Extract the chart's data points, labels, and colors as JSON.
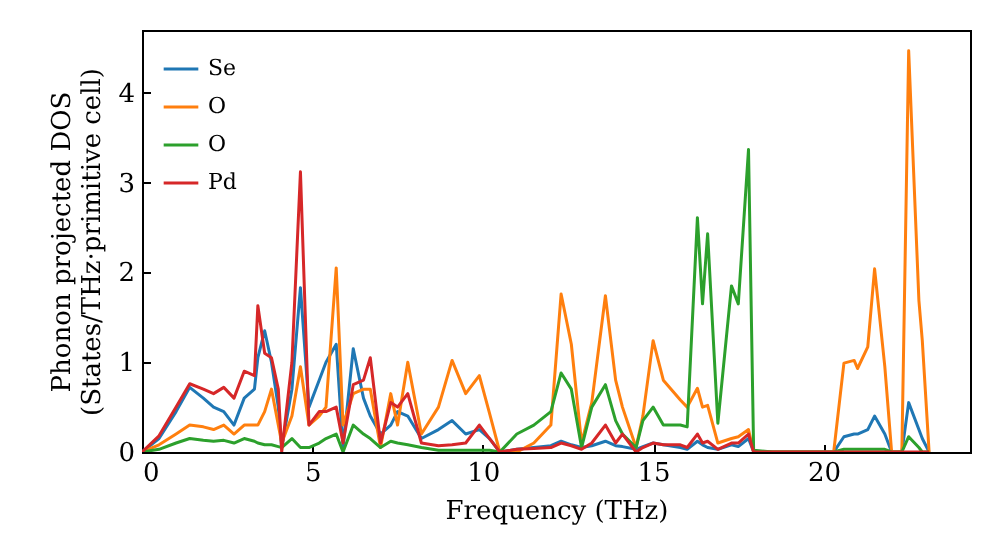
{
  "chart_data": {
    "type": "line",
    "xlabel": "Frequency (THz)",
    "ylabel": "Phonon projected DOS\n(States/THz·primitive cell)",
    "x": [
      0,
      0.5,
      1.0,
      1.4,
      1.8,
      2.1,
      2.4,
      2.7,
      3.0,
      3.3,
      3.4,
      3.6,
      3.8,
      4.0,
      4.1,
      4.4,
      4.65,
      4.9,
      5.2,
      5.4,
      5.7,
      5.9,
      6.2,
      6.5,
      6.7,
      7.0,
      7.3,
      7.5,
      7.8,
      8.2,
      8.7,
      9.1,
      9.5,
      9.9,
      10.2,
      10.5,
      11.0,
      11.5,
      12.0,
      12.3,
      12.6,
      12.9,
      13.2,
      13.6,
      13.9,
      14.1,
      14.5,
      14.7,
      15.0,
      15.3,
      15.8,
      16.0,
      16.3,
      16.45,
      16.6,
      16.9,
      17.3,
      17.5,
      17.8,
      17.95,
      18.5,
      19.5,
      20.3,
      20.6,
      20.9,
      21.0,
      21.3,
      21.5,
      21.8,
      22.0,
      22.3,
      22.5,
      22.8,
      22.9,
      23.1
    ],
    "series": [
      {
        "name": "Se",
        "color": "#1f77b4",
        "values": [
          0,
          0.15,
          0.45,
          0.72,
          0.6,
          0.5,
          0.45,
          0.3,
          0.6,
          0.7,
          1.05,
          1.35,
          1.0,
          0.5,
          0.05,
          0.7,
          1.83,
          0.5,
          0.8,
          1.0,
          1.2,
          0.05,
          1.15,
          0.6,
          0.4,
          0.2,
          0.3,
          0.45,
          0.4,
          0.15,
          0.25,
          0.35,
          0.2,
          0.25,
          0.15,
          0,
          0.03,
          0.05,
          0.07,
          0.12,
          0.08,
          0.05,
          0.07,
          0.12,
          0.07,
          0.06,
          0.03,
          0.06,
          0.1,
          0.08,
          0.05,
          0.03,
          0.12,
          0.08,
          0.05,
          0.03,
          0.08,
          0.06,
          0.15,
          0,
          0,
          0,
          0,
          0.17,
          0.2,
          0.2,
          0.25,
          0.4,
          0.2,
          0,
          0,
          0.55,
          0.25,
          0.15,
          0
        ]
      },
      {
        "name": "O",
        "color": "#ff7f0e",
        "values": [
          0,
          0.08,
          0.2,
          0.3,
          0.28,
          0.25,
          0.3,
          0.2,
          0.3,
          0.3,
          0.3,
          0.45,
          0.7,
          0.3,
          0.1,
          0.4,
          0.95,
          0.3,
          0.4,
          0.5,
          2.05,
          0.3,
          0.65,
          0.7,
          0.7,
          0.05,
          0.65,
          0.3,
          1.0,
          0.2,
          0.5,
          1.02,
          0.65,
          0.85,
          0.43,
          0,
          0,
          0.1,
          0.3,
          1.76,
          1.2,
          0.1,
          0.55,
          1.74,
          0.8,
          0.5,
          0.05,
          0.4,
          1.24,
          0.8,
          0.58,
          0.5,
          0.71,
          0.5,
          0.52,
          0.1,
          0.15,
          0.17,
          0.25,
          0,
          0,
          0,
          0,
          0.99,
          1.02,
          0.93,
          1.17,
          2.04,
          0.95,
          0,
          0,
          4.47,
          1.69,
          1.24,
          0
        ]
      },
      {
        "name": "O",
        "color": "#2ca02c",
        "values": [
          0,
          0.03,
          0.1,
          0.15,
          0.13,
          0.12,
          0.13,
          0.1,
          0.15,
          0.12,
          0.1,
          0.08,
          0.08,
          0.06,
          0.05,
          0.15,
          0.05,
          0.05,
          0.1,
          0.15,
          0.2,
          0,
          0.3,
          0.2,
          0.15,
          0.05,
          0.12,
          0.1,
          0.08,
          0.05,
          0.02,
          0.02,
          0.02,
          0.02,
          0.02,
          0,
          0.2,
          0.3,
          0.45,
          0.88,
          0.7,
          0.05,
          0.5,
          0.75,
          0.35,
          0.2,
          0.05,
          0.35,
          0.5,
          0.3,
          0.3,
          0.28,
          2.61,
          1.65,
          2.43,
          0.32,
          1.85,
          1.65,
          3.37,
          0.02,
          0,
          0,
          0,
          0.03,
          0.03,
          0.03,
          0.03,
          0.03,
          0.03,
          0,
          0,
          0.17,
          0.05,
          0,
          0
        ]
      },
      {
        "name": "Pd",
        "color": "#d62728",
        "values": [
          0,
          0.18,
          0.5,
          0.76,
          0.7,
          0.65,
          0.72,
          0.6,
          0.9,
          0.85,
          1.63,
          1.1,
          1.05,
          0.7,
          0,
          1.0,
          3.12,
          0.3,
          0.45,
          0.45,
          0.5,
          0.1,
          0.75,
          0.8,
          1.05,
          0.1,
          0.55,
          0.5,
          0.65,
          0.1,
          0.07,
          0.08,
          0.1,
          0.3,
          0.15,
          0,
          0.03,
          0.04,
          0.05,
          0.1,
          0.07,
          0.03,
          0.1,
          0.3,
          0.1,
          0.2,
          0,
          0.05,
          0.1,
          0.08,
          0.08,
          0.05,
          0.2,
          0.1,
          0.12,
          0.03,
          0.1,
          0.1,
          0.2,
          0,
          0,
          0,
          0,
          0,
          0,
          0,
          0,
          0,
          0,
          0,
          0,
          0,
          0,
          0,
          0
        ]
      }
    ],
    "xlim": [
      0,
      24.3
    ],
    "xticks": [
      0,
      5,
      10,
      15,
      20
    ],
    "ylim": [
      0,
      4.7
    ],
    "yticks": [
      0,
      1,
      2,
      3,
      4
    ],
    "legend": "top left",
    "grid": false,
    "marker": "none",
    "line_style": "solid"
  }
}
